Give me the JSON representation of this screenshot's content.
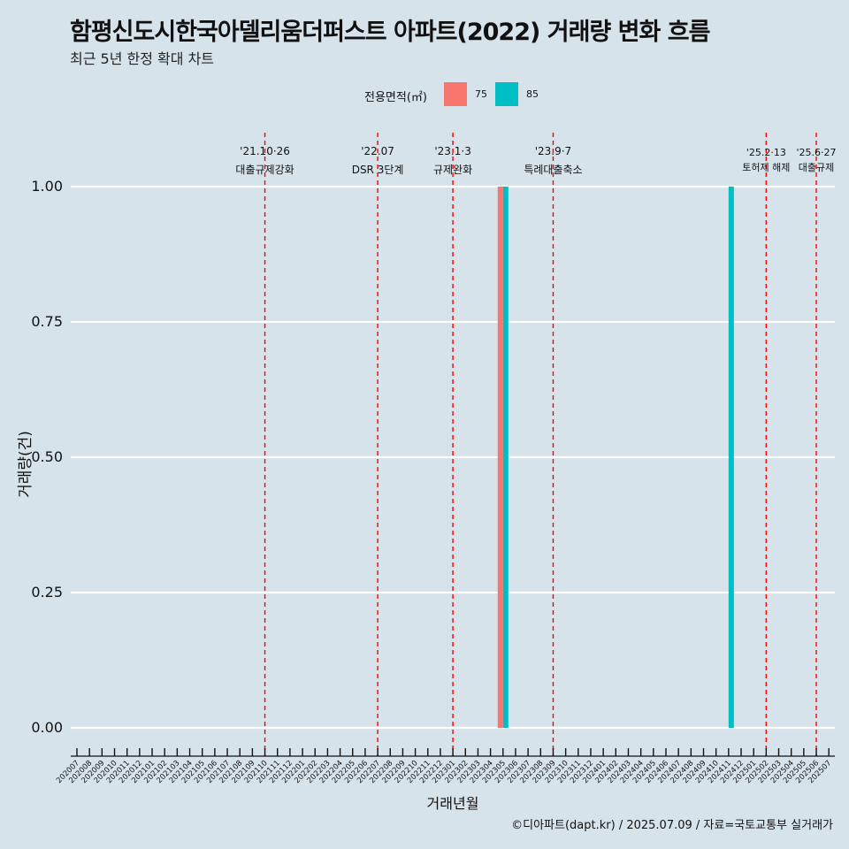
{
  "header": {
    "title": "함평신도시한국아델리움더퍼스트 아파트(2022) 거래량 변화 흐름",
    "subtitle": "최근 5년 한정 확대 차트"
  },
  "legend": {
    "title": "전용면적(㎡)",
    "items": [
      {
        "label": "75",
        "color": "#F8766D"
      },
      {
        "label": "85",
        "color": "#00BFC4"
      }
    ]
  },
  "caption": "©디아파트(dapt.kr) / 2025.07.09 / 자료=국토교통부 실거래가",
  "chart_data": {
    "type": "bar",
    "xlabel": "거래년월",
    "ylabel": "거래량(건)",
    "ylim": [
      0,
      1
    ],
    "yticks": [
      "0.00",
      "0.25",
      "0.50",
      "0.75",
      "1.00"
    ],
    "grid": true,
    "legend_position": "top",
    "categories": [
      "202007",
      "202008",
      "202009",
      "202010",
      "202011",
      "202012",
      "202101",
      "202102",
      "202103",
      "202104",
      "202105",
      "202106",
      "202107",
      "202108",
      "202109",
      "202110",
      "202111",
      "202112",
      "202201",
      "202202",
      "202203",
      "202204",
      "202205",
      "202206",
      "202207",
      "202208",
      "202209",
      "202210",
      "202211",
      "202212",
      "202301",
      "202302",
      "202303",
      "202304",
      "202305",
      "202306",
      "202307",
      "202308",
      "202309",
      "202310",
      "202311",
      "202312",
      "202401",
      "202402",
      "202403",
      "202404",
      "202405",
      "202406",
      "202407",
      "202408",
      "202409",
      "202410",
      "202411",
      "202412",
      "202501",
      "202502",
      "202503",
      "202504",
      "202505",
      "202506",
      "202507"
    ],
    "series": [
      {
        "name": "75",
        "color": "#F8766D",
        "points": [
          {
            "x": "202305",
            "y": 1
          }
        ]
      },
      {
        "name": "85",
        "color": "#00BFC4",
        "points": [
          {
            "x": "202305",
            "y": 1
          },
          {
            "x": "202411",
            "y": 1
          }
        ]
      }
    ],
    "annotations": [
      {
        "x": "202110",
        "date": "'21.10·26",
        "label": "대출규제강화"
      },
      {
        "x": "202207",
        "date": "'22.07",
        "label": "DSR 3단계"
      },
      {
        "x": "202301",
        "date": "'23.1·3",
        "label": "규제완화"
      },
      {
        "x": "202309",
        "date": "'23.9·7",
        "label": "특례대출축소"
      },
      {
        "x": "202502",
        "date": "'25.2·13",
        "label": "토허제 해제"
      },
      {
        "x": "202506",
        "date": "'25.6·27",
        "label": "대출규제"
      }
    ]
  }
}
